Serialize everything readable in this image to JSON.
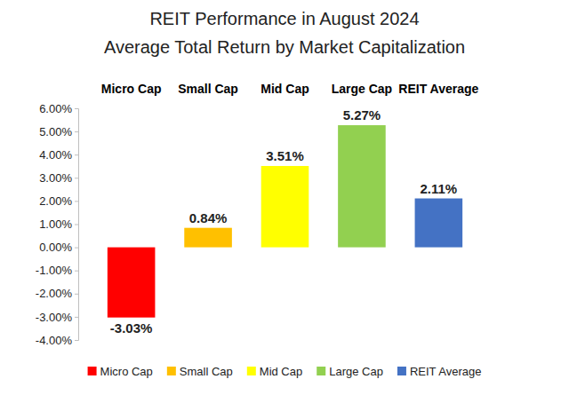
{
  "chart_data": {
    "type": "bar",
    "title": "REIT Performance in August 2024",
    "subtitle": "Average Total Return by Market Capitalization",
    "categories": [
      "Micro Cap",
      "Small Cap",
      "Mid Cap",
      "Large Cap",
      "REIT Average"
    ],
    "values": [
      -3.03,
      0.84,
      3.51,
      5.27,
      2.11
    ],
    "value_labels": [
      "-3.03%",
      "0.84%",
      "3.51%",
      "5.27%",
      "2.11%"
    ],
    "colors": [
      "#ff0000",
      "#ffc000",
      "#ffff00",
      "#92d050",
      "#4472c4"
    ],
    "ylim": [
      -4,
      6
    ],
    "yticks": [
      {
        "value": -4,
        "label": "-4.00%"
      },
      {
        "value": -3,
        "label": "-3.00%"
      },
      {
        "value": -2,
        "label": "-2.00%"
      },
      {
        "value": -1,
        "label": "-1.00%"
      },
      {
        "value": 0,
        "label": "0.00%"
      },
      {
        "value": 1,
        "label": "1.00%"
      },
      {
        "value": 2,
        "label": "2.00%"
      },
      {
        "value": 3,
        "label": "3.00%"
      },
      {
        "value": 4,
        "label": "4.00%"
      },
      {
        "value": 5,
        "label": "5.00%"
      },
      {
        "value": 6,
        "label": "6.00%"
      }
    ],
    "grid": false,
    "data_labels": true,
    "legend": "bottom"
  }
}
